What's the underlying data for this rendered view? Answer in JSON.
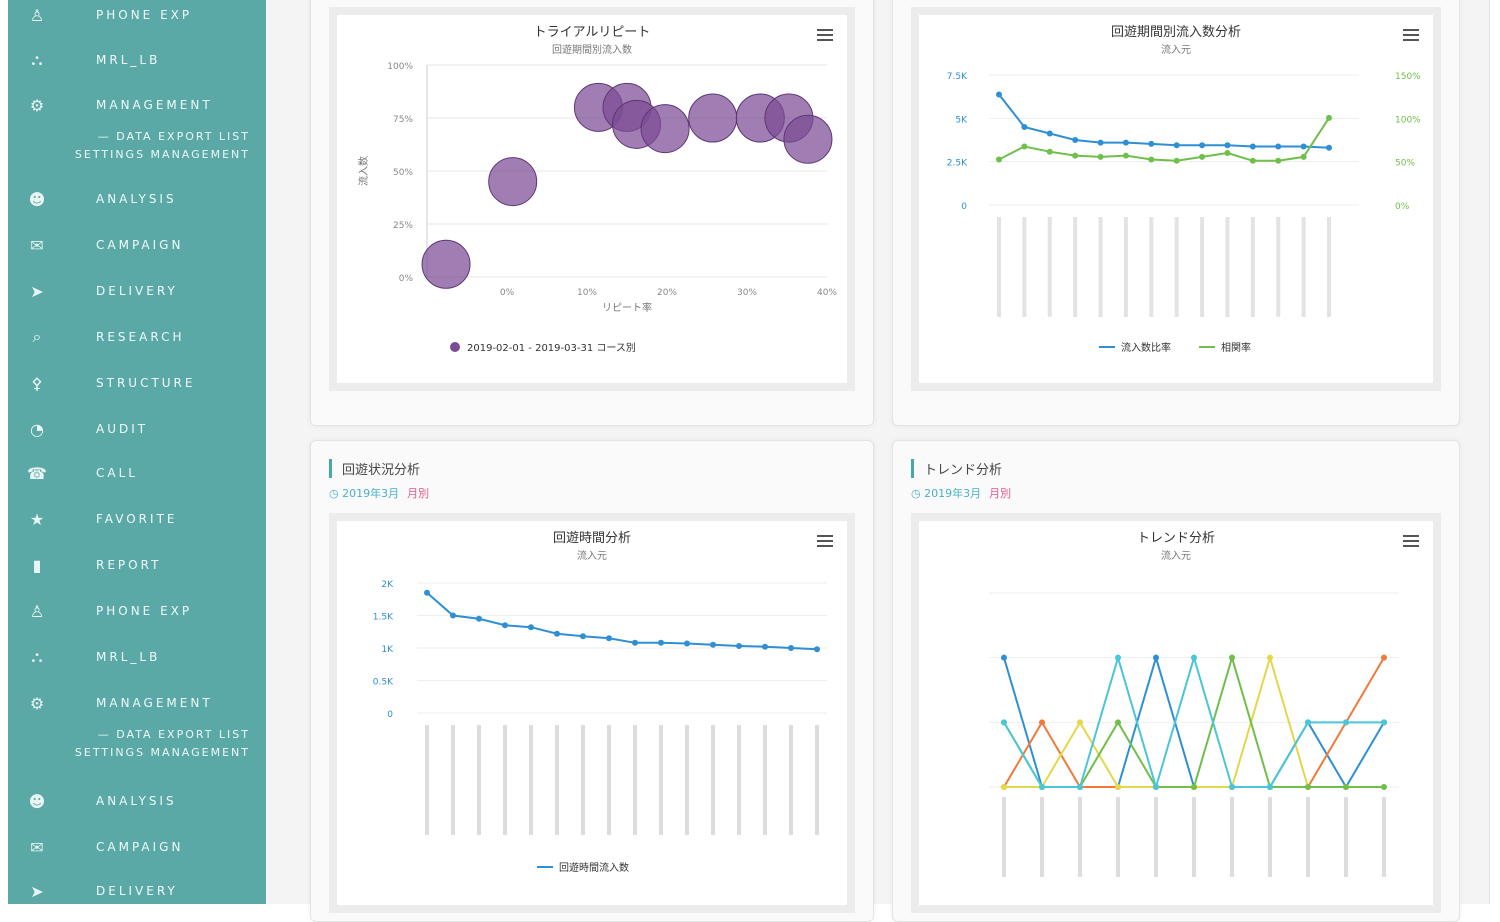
{
  "sidebar": {
    "items": [
      {
        "icon": "user-icon",
        "label": "PHONE EXP",
        "top": 0
      },
      {
        "icon": "network-icon",
        "label": "MRL_LB",
        "top": 45
      },
      {
        "icon": "tag-icon",
        "label": "MANAGEMENT",
        "top": 90
      },
      {
        "icon": "people-icon",
        "label": "ANALYSIS",
        "top": 184
      },
      {
        "icon": "megaphone-icon",
        "label": "CAMPAIGN",
        "top": 230
      },
      {
        "icon": "send-icon",
        "label": "DELIVERY",
        "top": 276
      },
      {
        "icon": "search-icon",
        "label": "RESEARCH",
        "top": 322
      },
      {
        "icon": "sitemap-icon",
        "label": "STRUCTURE",
        "top": 368
      },
      {
        "icon": "chart-icon",
        "label": "AUDIT",
        "top": 414
      },
      {
        "icon": "phone-icon",
        "label": "CALL",
        "top": 458
      },
      {
        "icon": "star-icon",
        "label": "FAVORITE",
        "top": 504
      },
      {
        "icon": "bar-icon",
        "label": "REPORT",
        "top": 550
      },
      {
        "icon": "user-icon",
        "label": "PHONE EXP",
        "top": 596
      },
      {
        "icon": "network-icon",
        "label": "MRL_LB",
        "top": 642
      },
      {
        "icon": "tag-icon",
        "label": "MANAGEMENT",
        "top": 688
      },
      {
        "icon": "people-icon",
        "label": "ANALYSIS",
        "top": 786
      },
      {
        "icon": "megaphone-icon",
        "label": "CAMPAIGN",
        "top": 832
      },
      {
        "icon": "send-icon",
        "label": "DELIVERY",
        "top": 876
      }
    ],
    "wrap_blocks": [
      {
        "line1": "— DATA EXPORT LIST",
        "line2": "SETTINGS MANAGEMENT",
        "top": 128
      },
      {
        "line1": "— DATA EXPORT LIST",
        "line2": "SETTINGS MANAGEMENT",
        "top": 726
      }
    ]
  },
  "panels": {
    "p3": {
      "title": "回遊状況分析",
      "sub": "2019年3月",
      "sub_hl": "月別"
    },
    "p4": {
      "title": "トレンド分析",
      "sub": "2019年3月",
      "sub_hl": "月別"
    }
  },
  "charts": {
    "bubble": {
      "title": "トライアルリピート",
      "subtitle": "回遊期間別流入数",
      "legend": "2019-02-01 - 2019-03-31 コース別"
    },
    "dual": {
      "title": "回遊期間別流入数分析",
      "subtitle": "流入元",
      "legend1": "流入数比率",
      "legend2": "相関率"
    },
    "line1": {
      "title": "回遊時間分析",
      "subtitle": "流入元",
      "legend": "回遊時間流入数"
    },
    "trend": {
      "title": "トレンド分析",
      "subtitle": "流入元"
    }
  },
  "chart_data": [
    {
      "type": "scatter",
      "title": "トライアルリピート",
      "subtitle": "回遊期間別流入数",
      "xlabel": "リピート率",
      "ylabel": "流入数",
      "x_ticks": [
        "0%",
        "10%",
        "20%",
        "30%",
        "40%"
      ],
      "y_ticks": [
        "0%",
        "25%",
        "50%",
        "75%",
        "100%"
      ],
      "series": [
        {
          "name": "2019-02-01 - 2019-03-31 コース別",
          "color": "#7b4b94",
          "points": [
            {
              "x": 2,
              "y": 6
            },
            {
              "x": 9,
              "y": 45
            },
            {
              "x": 18,
              "y": 80
            },
            {
              "x": 21,
              "y": 80
            },
            {
              "x": 22,
              "y": 72
            },
            {
              "x": 25,
              "y": 70
            },
            {
              "x": 30,
              "y": 75
            },
            {
              "x": 35,
              "y": 75
            },
            {
              "x": 38,
              "y": 75
            },
            {
              "x": 40,
              "y": 65
            }
          ]
        }
      ]
    },
    {
      "type": "line",
      "title": "回遊期間別流入数分析",
      "subtitle": "流入元",
      "y_ticks_left": [
        "0",
        "2.5K",
        "5K",
        "7.5K"
      ],
      "y_ticks_right": [
        "0%",
        "50%",
        "100%",
        "150%"
      ],
      "series": [
        {
          "name": "流入数比率",
          "color": "#2e8fd4",
          "values": [
            8.5,
            6,
            5.5,
            5,
            4.8,
            4.8,
            4.7,
            4.6,
            4.6,
            4.6,
            4.5,
            4.5,
            4.5,
            4.4
          ]
        },
        {
          "name": "相関率",
          "color": "#6fbf4a",
          "values": [
            3.5,
            4.5,
            4.1,
            3.8,
            3.7,
            3.8,
            3.5,
            3.4,
            3.7,
            4.0,
            3.4,
            3.4,
            3.7,
            6.7
          ]
        }
      ]
    },
    {
      "type": "line",
      "title": "回遊時間分析",
      "subtitle": "流入元",
      "y_ticks": [
        "0",
        "0.5K",
        "1K",
        "1.5K",
        "2K"
      ],
      "series": [
        {
          "name": "回遊時間流入数",
          "color": "#2e8fd4",
          "values": [
            1.85,
            1.5,
            1.45,
            1.35,
            1.32,
            1.22,
            1.18,
            1.15,
            1.08,
            1.08,
            1.07,
            1.05,
            1.03,
            1.02,
            1.0,
            0.98
          ]
        }
      ]
    },
    {
      "type": "line",
      "title": "トレンド分析",
      "subtitle": "流入元",
      "series": [
        {
          "name": "A",
          "color": "#2e8fd4",
          "values": [
            2,
            0,
            0,
            0,
            2,
            0,
            0,
            0,
            1,
            0,
            1
          ]
        },
        {
          "name": "B",
          "color": "#f07a3a",
          "values": [
            0,
            1,
            0,
            0,
            0,
            0,
            0,
            0,
            0,
            1,
            2
          ]
        },
        {
          "name": "C",
          "color": "#e3d84a",
          "values": [
            0,
            0,
            1,
            0,
            0,
            0,
            0,
            2,
            0,
            0,
            0
          ]
        },
        {
          "name": "D",
          "color": "#6fbf4a",
          "values": [
            1,
            0,
            0,
            1,
            0,
            0,
            2,
            0,
            0,
            0,
            0
          ]
        },
        {
          "name": "E",
          "color": "#4ac6d8",
          "values": [
            1,
            0,
            0,
            2,
            0,
            2,
            0,
            0,
            1,
            1,
            1
          ]
        }
      ]
    }
  ]
}
